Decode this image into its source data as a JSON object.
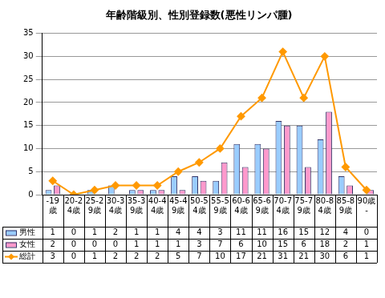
{
  "chart_data": {
    "type": "bar",
    "title": "年齢階級別、性別登録数(悪性リンパ腫)",
    "categories": [
      "-19歳",
      "20-24歳",
      "25-29歳",
      "30-34歳",
      "35-39歳",
      "40-44歳",
      "45-49歳",
      "50-54歳",
      "55-59歳",
      "60-64歳",
      "65-69歳",
      "70-74歳",
      "75-79歳",
      "80-84歳",
      "85-89歳",
      "90歳-"
    ],
    "series": [
      {
        "name": "男性",
        "color": "#99ccff",
        "values": [
          1,
          0,
          1,
          2,
          1,
          1,
          4,
          4,
          3,
          11,
          11,
          16,
          15,
          12,
          4,
          0
        ]
      },
      {
        "name": "女性",
        "color": "#ff99cc",
        "values": [
          2,
          0,
          0,
          0,
          1,
          1,
          1,
          3,
          7,
          6,
          10,
          15,
          6,
          18,
          2,
          1
        ]
      },
      {
        "name": "総計",
        "type": "line",
        "color": "#ff9900",
        "marker": "diamond",
        "values": [
          3,
          0,
          1,
          2,
          2,
          2,
          5,
          7,
          10,
          17,
          21,
          31,
          21,
          30,
          6,
          1
        ]
      }
    ],
    "ylim": [
      0,
      35
    ],
    "yticks": [
      0,
      5,
      10,
      15,
      20,
      25,
      30,
      35
    ],
    "grid": true
  }
}
